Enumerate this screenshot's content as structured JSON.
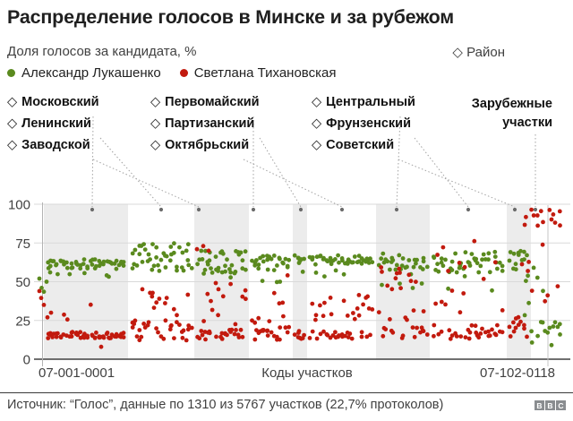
{
  "header": {
    "title": "Распределение голосов в Минске и за рубежом",
    "subtitle": "Доля голосов за кандидата, %",
    "region_key_label": "Район",
    "legend": [
      {
        "label": "Александр Лукашенко",
        "color": "#5a8a1e"
      },
      {
        "label": "Светлана Тихановская",
        "color": "#c21a0e"
      }
    ]
  },
  "icons": {
    "diamond": "◇"
  },
  "chart_data": {
    "type": "scatter",
    "title": "Распределение голосов в Минске и за рубежом",
    "ylabel": "Доля голосов за кандидата, %",
    "xlabel": "Коды участков",
    "ylim": [
      0,
      100
    ],
    "y_ticks": [
      0,
      25,
      50,
      75,
      100
    ],
    "grid": "horizontal",
    "legend_position": "top",
    "x_axis": {
      "first_code": "07-001-0001",
      "center_label": "Коды участков",
      "last_code": "07-102-0118"
    },
    "series": [
      {
        "name": "Александр Лукашенко",
        "color": "#5a8a1e",
        "typical_share_minsk": "55–70%",
        "typical_share_abroad": "10–25%"
      },
      {
        "name": "Светлана Тихановская",
        "color": "#c21a0e",
        "typical_share_minsk": "13–30%",
        "typical_share_abroad": "85–97%"
      }
    ],
    "marker_color": "#6b6b6b",
    "band_color": "#ececec",
    "districts": [
      {
        "name": "Московский",
        "x0": 49,
        "x1": 143,
        "marker_x": 103,
        "shaded": true,
        "n": 54,
        "green": {
          "lo": 58,
          "hi": 64.5,
          "p_out": 0.05,
          "out_lo": 50,
          "out_hi": 57
        },
        "red": {
          "lo": 13.5,
          "hi": 17.5,
          "p_out": 0.07,
          "out_lo": 20,
          "out_hi": 42
        },
        "green_extra": [
          [
            44,
            52
          ],
          [
            46.5,
            46
          ],
          [
            49,
            43.5
          ],
          [
            52,
            50
          ],
          [
            56,
            56
          ]
        ],
        "red_extra": [
          [
            44,
            44
          ],
          [
            46,
            39.5
          ],
          [
            49,
            35
          ],
          [
            53,
            27
          ],
          [
            57,
            30
          ],
          [
            113,
            8
          ]
        ]
      },
      {
        "name": "Ленинский",
        "x0": 143,
        "x1": 217,
        "marker_x": 180,
        "shaded": false,
        "n": 42,
        "green": {
          "lo": 57,
          "hi": 70,
          "p_out": 0.2,
          "out_lo": 70,
          "out_hi": 76
        },
        "red": {
          "lo": 12,
          "hi": 25,
          "p_out": 0.2,
          "out_lo": 28,
          "out_hi": 46
        }
      },
      {
        "name": "Заводской",
        "x0": 217,
        "x1": 278,
        "marker_x": 222,
        "shaded": true,
        "n": 38,
        "green": {
          "lo": 55,
          "hi": 70,
          "p_out": 0.08,
          "out_lo": 48,
          "out_hi": 55
        },
        "red": {
          "lo": 12.5,
          "hi": 19,
          "p_out": 0.38,
          "out_lo": 22,
          "out_hi": 50
        },
        "red_extra": [
          [
            220,
            71
          ],
          [
            227,
            73
          ],
          [
            233,
            70
          ]
        ]
      },
      {
        "name": "Первомайский",
        "x0": 278,
        "x1": 327,
        "marker_x": 283,
        "shaded": false,
        "n": 28,
        "green": {
          "lo": 57,
          "hi": 68,
          "p_out": 0.12,
          "out_lo": 47,
          "out_hi": 56
        },
        "red": {
          "lo": 12,
          "hi": 28,
          "p_out": 0.22,
          "out_lo": 32,
          "out_hi": 56
        }
      },
      {
        "name": "Партизанский",
        "x0": 327,
        "x1": 343,
        "marker_x": 336,
        "shaded": true,
        "n": 8,
        "green": {
          "lo": 60,
          "hi": 67,
          "p_out": 0.15,
          "out_lo": 55,
          "out_hi": 58
        },
        "red": {
          "lo": 12,
          "hi": 19,
          "p_out": 0.25,
          "out_lo": 24,
          "out_hi": 42
        }
      },
      {
        "name": "Октябрьский",
        "x0": 343,
        "x1": 420,
        "marker_x": 382,
        "shaded": false,
        "n": 44,
        "green": {
          "lo": 61,
          "hi": 67.5,
          "p_out": 0.1,
          "out_lo": 51,
          "out_hi": 59
        },
        "red": {
          "lo": 13,
          "hi": 18,
          "p_out": 0.3,
          "out_lo": 24,
          "out_hi": 42
        }
      },
      {
        "name": "Центральный",
        "x0": 420,
        "x1": 480,
        "marker_x": 443,
        "shaded": true,
        "n": 33,
        "green": {
          "lo": 57.5,
          "hi": 70,
          "p_out": 0.12,
          "out_lo": 44,
          "out_hi": 56
        },
        "red": {
          "lo": 13,
          "hi": 21,
          "p_out": 0.38,
          "out_lo": 25,
          "out_hi": 62
        }
      },
      {
        "name": "Фрунзенский",
        "x0": 480,
        "x1": 566,
        "marker_x": 523,
        "shaded": false,
        "n": 46,
        "green": {
          "lo": 56,
          "hi": 70,
          "p_out": 0.12,
          "out_lo": 40,
          "out_hi": 55
        },
        "red": {
          "lo": 13,
          "hi": 22,
          "p_out": 0.3,
          "out_lo": 28,
          "out_hi": 78
        }
      },
      {
        "name": "Советский",
        "x0": 566,
        "x1": 593,
        "marker_x": 575,
        "shaded": true,
        "n": 14,
        "green": {
          "lo": 57,
          "hi": 70,
          "p_out": 0.25,
          "out_lo": 33,
          "out_hi": 55
        },
        "red": {
          "lo": 14,
          "hi": 32,
          "p_out": 0.25,
          "out_lo": 40,
          "out_hi": 62
        }
      },
      {
        "name": "Зарубежные участки",
        "x0": 593,
        "x1": 635,
        "marker_x": 598,
        "shaded": false,
        "n": 20,
        "point_x0": 585,
        "point_x1": 628,
        "green": {
          "lo": 9,
          "hi": 24,
          "p_out": 0.25,
          "out_lo": 28,
          "out_hi": 62
        },
        "red": {
          "lo": 86,
          "hi": 97,
          "p_out": 0.25,
          "out_lo": 32,
          "out_hi": 75
        }
      }
    ]
  },
  "footer": {
    "source": "Источник: “Голос”, данные по 1310 из 5767 участков (22,7% протоколов)",
    "logo": [
      "B",
      "B",
      "C"
    ]
  }
}
